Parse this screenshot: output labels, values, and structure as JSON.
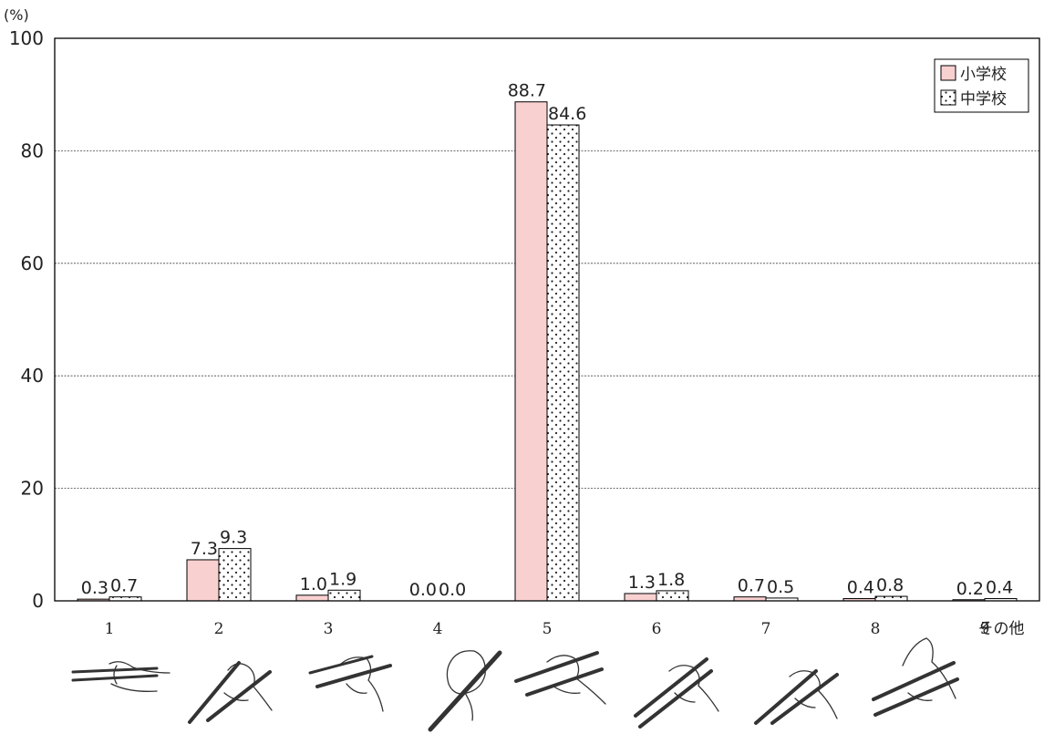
{
  "chart_data": {
    "type": "bar",
    "y_unit_label": "(%)",
    "ylim": [
      0,
      100
    ],
    "yticks": [
      0,
      20,
      40,
      60,
      80,
      100
    ],
    "grid": true,
    "legend_position": "top-right",
    "categories": [
      "1",
      "2",
      "3",
      "4",
      "5",
      "6",
      "7",
      "8",
      "9"
    ],
    "category_note": "その他",
    "series": [
      {
        "name": "小学校",
        "values": [
          0.3,
          7.3,
          1.0,
          0.0,
          88.7,
          1.3,
          0.7,
          0.4,
          0.2
        ],
        "labels": [
          "0.3",
          "7.3",
          "1.0",
          "0.0",
          "88.7",
          "1.3",
          "0.7",
          "0.4",
          "0.2"
        ],
        "color": "#f9d0d0",
        "pattern": "solid"
      },
      {
        "name": "中学校",
        "values": [
          0.7,
          9.3,
          1.9,
          0.0,
          84.6,
          1.8,
          0.5,
          0.8,
          0.4
        ],
        "labels": [
          "0.7",
          "9.3",
          "1.9",
          "0.0",
          "84.6",
          "1.8",
          "0.5",
          "0.8",
          "0.4"
        ],
        "color": "#ffffff",
        "pattern": "dots"
      }
    ],
    "illustrations": "chopstick-grip illustrations under categories 1–8"
  }
}
